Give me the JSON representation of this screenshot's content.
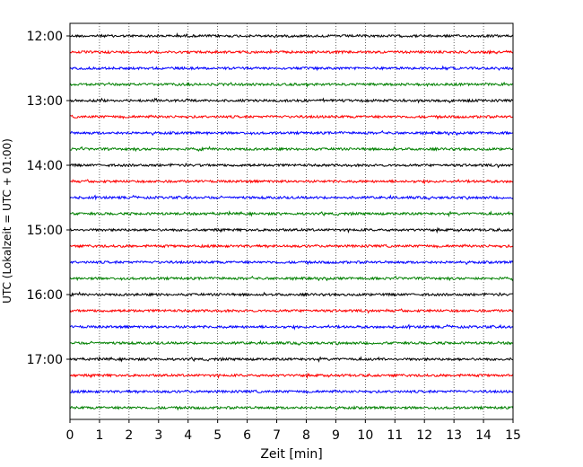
{
  "chart_data": {
    "type": "line",
    "title": "",
    "xlabel": "Zeit  [min]",
    "ylabel": "UTC (Lokalzeit = UTC + 01:00)",
    "xlim": [
      0,
      15
    ],
    "x_ticks": [
      "0",
      "1",
      "2",
      "3",
      "4",
      "5",
      "6",
      "7",
      "8",
      "9",
      "10",
      "11",
      "12",
      "13",
      "14",
      "15"
    ],
    "y_tick_labels": [
      "12:00",
      "13:00",
      "14:00",
      "15:00",
      "16:00",
      "17:00"
    ],
    "trace_interval_min": 15,
    "first_trace_time": "12:00",
    "last_trace_time": "17:45",
    "trace_colors": [
      "#000000",
      "#ff0000",
      "#0000ff",
      "#008000"
    ],
    "trace_start_times": [
      "12:00",
      "12:15",
      "12:30",
      "12:45",
      "13:00",
      "13:15",
      "13:30",
      "13:45",
      "14:00",
      "14:15",
      "14:30",
      "14:45",
      "15:00",
      "15:15",
      "15:30",
      "15:45",
      "16:00",
      "16:15",
      "16:30",
      "16:45",
      "17:00",
      "17:15",
      "17:30",
      "17:45"
    ],
    "x_grid": "dotted vertical at each minute",
    "legend": "none"
  }
}
